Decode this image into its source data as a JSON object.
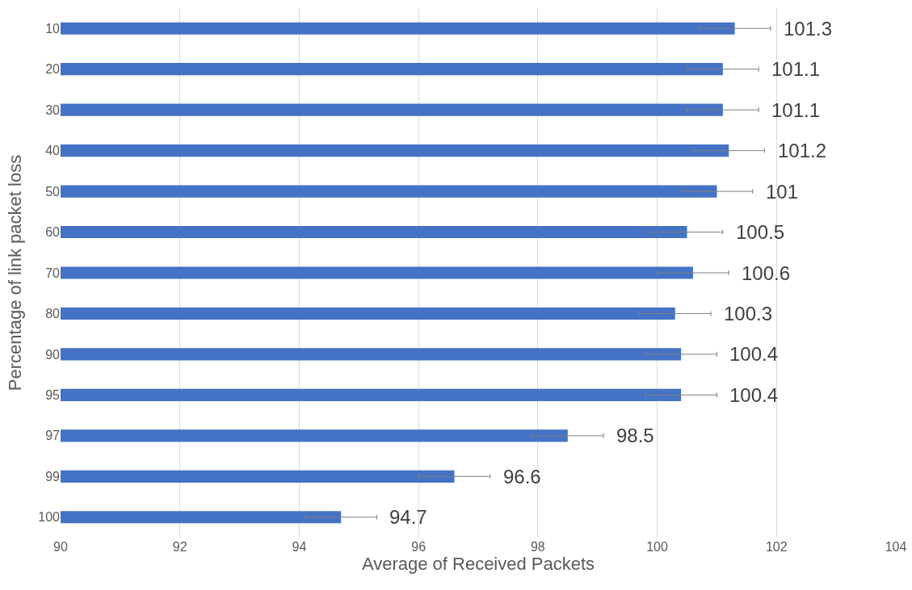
{
  "chart_data": {
    "type": "bar",
    "orientation": "horizontal",
    "xlabel": "Average of Received Packets",
    "ylabel": "Percentage of link packet loss",
    "categories": [
      "10",
      "20",
      "30",
      "40",
      "50",
      "60",
      "70",
      "80",
      "90",
      "95",
      "97",
      "99",
      "100"
    ],
    "values": [
      101.3,
      101.1,
      101.1,
      101.2,
      101,
      100.5,
      100.6,
      100.3,
      100.4,
      100.4,
      98.5,
      96.6,
      94.7
    ],
    "errors": [
      0.6,
      0.6,
      0.6,
      0.6,
      0.6,
      0.6,
      0.6,
      0.6,
      0.6,
      0.6,
      0.6,
      0.6,
      0.6
    ],
    "color": "#4472c4",
    "xlim": [
      90,
      104
    ],
    "xticks": [
      90,
      92,
      94,
      96,
      98,
      100,
      102,
      104
    ],
    "grid": "x",
    "data_labels": true
  }
}
